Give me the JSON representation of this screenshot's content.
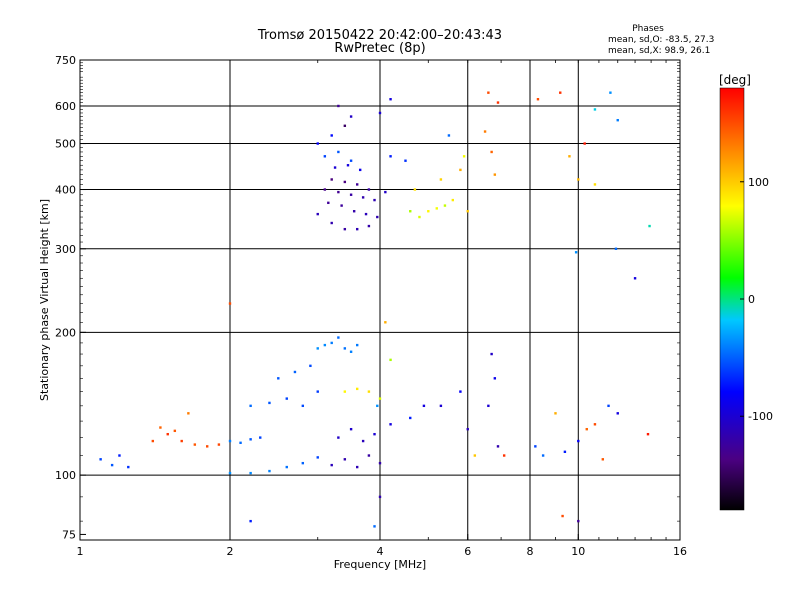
{
  "chart_data": {
    "type": "scatter",
    "title": "Tromsø 20150422 20:42:00–20:43:43",
    "subtitle": "RwPretec (8p)",
    "xlabel": "Frequency [MHz]",
    "ylabel": "Stationary phase Virtual Height [km]",
    "x_scale": "log",
    "y_scale": "log",
    "xlim": [
      1,
      16
    ],
    "ylim": [
      73,
      750
    ],
    "x_ticks": [
      1,
      2,
      4,
      6,
      8,
      10,
      16
    ],
    "y_ticks": [
      75,
      100,
      200,
      300,
      400,
      500,
      600,
      750
    ],
    "grid": true,
    "stats": {
      "heading": "Phases",
      "line_o": "mean, sd,O: -83.5, 27.3",
      "line_x": "mean, sd,X:  98.9, 26.1"
    },
    "colorbar": {
      "label": "[deg]",
      "min": -180,
      "max": 180,
      "ticks": [
        100,
        0,
        -100
      ],
      "colormap": [
        "#000000",
        "#4b0082",
        "#0000ff",
        "#00c8ff",
        "#00ff00",
        "#ffff00",
        "#ff8000",
        "#ff0000"
      ]
    },
    "series": [
      {
        "points": [
          [
            3.0,
            355,
            -105
          ],
          [
            3.2,
            340,
            -110
          ],
          [
            3.4,
            330,
            -115
          ],
          [
            3.6,
            330,
            -108
          ],
          [
            3.8,
            335,
            -112
          ],
          [
            3.15,
            375,
            -120
          ],
          [
            3.35,
            370,
            -118
          ],
          [
            3.55,
            360,
            -112
          ],
          [
            3.75,
            355,
            -105
          ],
          [
            3.95,
            350,
            -110
          ],
          [
            3.1,
            400,
            -125
          ],
          [
            3.3,
            395,
            -122
          ],
          [
            3.5,
            390,
            -115
          ],
          [
            3.7,
            385,
            -110
          ],
          [
            3.9,
            380,
            -108
          ],
          [
            3.2,
            420,
            -130
          ],
          [
            3.4,
            415,
            -128
          ],
          [
            3.6,
            410,
            -120
          ],
          [
            3.8,
            400,
            -115
          ],
          [
            4.1,
            395,
            -100
          ],
          [
            3.25,
            445,
            -95
          ],
          [
            3.45,
            450,
            -90
          ],
          [
            3.65,
            440,
            -85
          ],
          [
            4.2,
            470,
            -70
          ],
          [
            4.5,
            460,
            -65
          ],
          [
            3.1,
            470,
            -60
          ],
          [
            3.3,
            480,
            -55
          ],
          [
            3.5,
            460,
            -58
          ],
          [
            3.0,
            500,
            -80
          ],
          [
            3.2,
            520,
            -75
          ],
          [
            3.4,
            545,
            -140
          ],
          [
            3.3,
            600,
            -120
          ],
          [
            3.5,
            570,
            -100
          ],
          [
            4.0,
            580,
            -95
          ],
          [
            4.2,
            620,
            -90
          ],
          [
            4.6,
            360,
            60
          ],
          [
            4.8,
            350,
            70
          ],
          [
            5.0,
            360,
            80
          ],
          [
            5.2,
            365,
            75
          ],
          [
            5.4,
            370,
            65
          ],
          [
            4.7,
            400,
            90
          ],
          [
            5.3,
            420,
            95
          ],
          [
            5.6,
            380,
            85
          ],
          [
            5.8,
            440,
            110
          ],
          [
            6.0,
            360,
            100
          ],
          [
            5.9,
            470,
            75
          ],
          [
            5.5,
            520,
            -50
          ],
          [
            6.6,
            640,
            150
          ],
          [
            6.5,
            530,
            130
          ],
          [
            6.9,
            610,
            160
          ],
          [
            6.7,
            480,
            140
          ],
          [
            6.8,
            430,
            120
          ],
          [
            8.3,
            620,
            150
          ],
          [
            9.2,
            640,
            160
          ],
          [
            10.8,
            590,
            -20
          ],
          [
            11.6,
            640,
            -40
          ],
          [
            12.0,
            560,
            -45
          ],
          [
            10.3,
            500,
            170
          ],
          [
            10.8,
            410,
            90
          ],
          [
            13.9,
            335,
            -10
          ],
          [
            9.6,
            470,
            110
          ],
          [
            10.0,
            420,
            105
          ],
          [
            9.9,
            295,
            -40
          ],
          [
            11.9,
            300,
            -50
          ],
          [
            13.0,
            260,
            -90
          ],
          [
            1.1,
            108,
            -60
          ],
          [
            1.16,
            105,
            -55
          ],
          [
            1.2,
            110,
            -70
          ],
          [
            1.25,
            104,
            -65
          ],
          [
            1.4,
            118,
            150
          ],
          [
            1.5,
            122,
            160
          ],
          [
            1.6,
            118,
            155
          ],
          [
            1.7,
            116,
            145
          ],
          [
            1.8,
            115,
            150
          ],
          [
            1.9,
            116,
            152
          ],
          [
            1.45,
            126,
            140
          ],
          [
            1.55,
            124,
            145
          ],
          [
            1.65,
            135,
            130
          ],
          [
            2.0,
            118,
            -45
          ],
          [
            2.1,
            117,
            -50
          ],
          [
            2.2,
            119,
            -55
          ],
          [
            2.3,
            120,
            -60
          ],
          [
            2.0,
            101,
            -40
          ],
          [
            2.2,
            101,
            -42
          ],
          [
            2.4,
            102,
            -44
          ],
          [
            2.6,
            104,
            -48
          ],
          [
            2.8,
            106,
            -52
          ],
          [
            3.0,
            109,
            -60
          ],
          [
            3.2,
            105,
            -105
          ],
          [
            3.4,
            108,
            -110
          ],
          [
            3.6,
            104,
            -108
          ],
          [
            3.8,
            110,
            -115
          ],
          [
            4.0,
            106,
            -112
          ],
          [
            3.3,
            120,
            -100
          ],
          [
            3.5,
            125,
            -98
          ],
          [
            3.7,
            118,
            -105
          ],
          [
            3.9,
            122,
            -95
          ],
          [
            4.2,
            128,
            -90
          ],
          [
            2.2,
            140,
            -50
          ],
          [
            2.4,
            142,
            -55
          ],
          [
            2.6,
            145,
            -60
          ],
          [
            2.8,
            140,
            -58
          ],
          [
            3.0,
            150,
            -62
          ],
          [
            2.5,
            160,
            -55
          ],
          [
            2.7,
            165,
            -52
          ],
          [
            2.9,
            170,
            -58
          ],
          [
            3.0,
            185,
            -40
          ],
          [
            3.1,
            188,
            -42
          ],
          [
            3.2,
            190,
            -45
          ],
          [
            3.3,
            195,
            -50
          ],
          [
            3.4,
            185,
            -48
          ],
          [
            3.5,
            182,
            -44
          ],
          [
            3.6,
            188,
            -46
          ],
          [
            3.4,
            150,
            80
          ],
          [
            3.6,
            152,
            85
          ],
          [
            3.8,
            150,
            90
          ],
          [
            4.0,
            145,
            70
          ],
          [
            4.2,
            175,
            60
          ],
          [
            4.6,
            132,
            -70
          ],
          [
            4.9,
            140,
            -90
          ],
          [
            5.3,
            140,
            -95
          ],
          [
            5.8,
            150,
            -80
          ],
          [
            6.0,
            125,
            -105
          ],
          [
            6.2,
            110,
            100
          ],
          [
            6.6,
            140,
            -95
          ],
          [
            6.7,
            180,
            -100
          ],
          [
            6.8,
            160,
            -85
          ],
          [
            6.9,
            115,
            -110
          ],
          [
            8.2,
            115,
            -60
          ],
          [
            8.5,
            110,
            -50
          ],
          [
            9.0,
            135,
            110
          ],
          [
            9.4,
            112,
            -70
          ],
          [
            10.0,
            118,
            -80
          ],
          [
            10.4,
            125,
            140
          ],
          [
            10.8,
            128,
            150
          ],
          [
            11.2,
            108,
            145
          ],
          [
            11.5,
            140,
            -60
          ],
          [
            12.0,
            135,
            -90
          ],
          [
            13.8,
            122,
            170
          ],
          [
            10.0,
            80,
            -120
          ],
          [
            9.3,
            82,
            150
          ],
          [
            7.1,
            110,
            160
          ],
          [
            3.9,
            78,
            -50
          ],
          [
            4.0,
            90,
            -110
          ],
          [
            3.95,
            140,
            -40
          ],
          [
            2.0,
            230,
            150
          ],
          [
            2.2,
            80,
            -70
          ],
          [
            4.1,
            210,
            110
          ]
        ]
      }
    ]
  }
}
